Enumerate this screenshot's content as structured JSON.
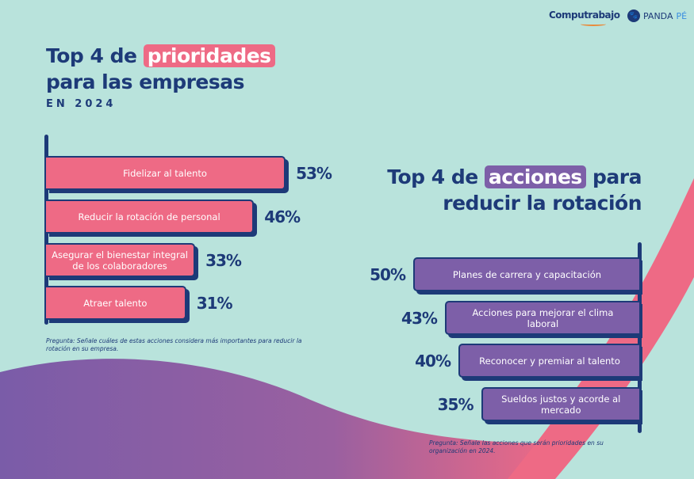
{
  "logos": {
    "computrabajo": "Computrabajo",
    "pandape_a": "PANDA",
    "pandape_b": "PÉ"
  },
  "colors": {
    "background": "#b9e3dc",
    "navy": "#1d3a78",
    "pink": "#ee6a85",
    "purple": "#7d5fa8"
  },
  "chart_data": [
    {
      "type": "bar",
      "orientation": "horizontal",
      "title_pre": "Top 4 de",
      "title_highlight": "prioridades",
      "title_post": "para las empresas",
      "subtitle": "EN 2024",
      "categories": [
        "Fidelizar al talento",
        "Reducir la rotación de personal",
        "Asegurar el bienestar integral de los colaboradores",
        "Atraer talento"
      ],
      "values": [
        53,
        46,
        33,
        31
      ],
      "labels": [
        "53%",
        "46%",
        "33%",
        "31%"
      ],
      "unit": "%",
      "note": "Pregunta: Señale cuáles de estas acciones considera más importantes para reducir la rotación en su empresa."
    },
    {
      "type": "bar",
      "orientation": "horizontal",
      "title_pre": "Top 4 de",
      "title_highlight": "acciones",
      "title_post_a": "para",
      "title_post": "reducir la rotación",
      "categories": [
        "Planes de carrera y capacitación",
        "Acciones para mejorar el clima laboral",
        "Reconocer y premiar al talento",
        "Sueldos justos y acorde al mercado"
      ],
      "values": [
        50,
        43,
        40,
        35
      ],
      "labels": [
        "50%",
        "43%",
        "40%",
        "35%"
      ],
      "unit": "%",
      "note": "Pregunta: Señale las acciones que serán prioridades en su organización en 2024."
    }
  ]
}
